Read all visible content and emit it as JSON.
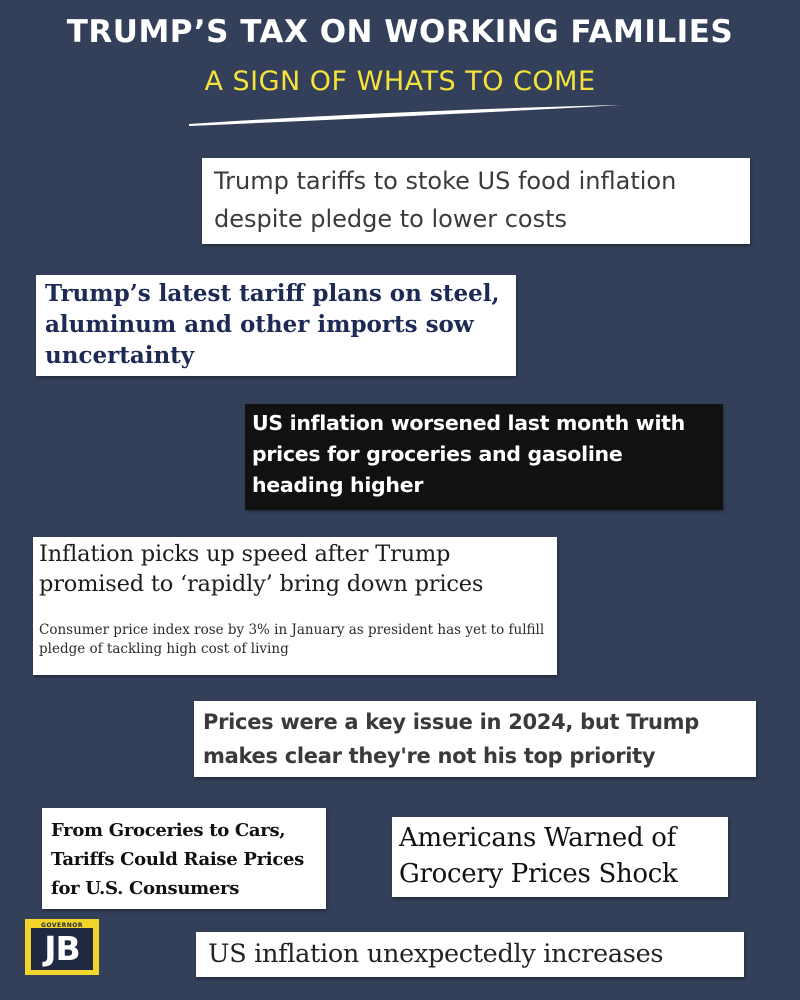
{
  "header": {
    "title": "TRUMP’S TAX ON WORKING FAMILIES",
    "subtitle": "A SIGN OF WHATS TO COME"
  },
  "headlines": [
    {
      "text": "Trump tariffs to stoke US food inflation despite pledge to lower costs"
    },
    {
      "text": "Trump’s latest tariff plans on steel, aluminum and other imports sow uncertainty"
    },
    {
      "text": "US inflation worsened last month with prices for groceries and gasoline heading higher"
    },
    {
      "text": "Inflation picks up speed after Trump promised to ‘rapidly’ bring down prices",
      "subhead": "Consumer price index rose by 3% in January as president has yet to fulfill pledge of tackling high cost of living"
    },
    {
      "text": "Prices were a key issue in 2024, but Trump makes clear they're not his top priority"
    },
    {
      "text": "From Groceries to Cars, Tariffs Could Raise Prices for U.S. Consumers"
    },
    {
      "text": "Americans Warned of Grocery Prices Shock"
    },
    {
      "text": "US inflation unexpectedly increases"
    }
  ],
  "logo": {
    "small_text": "GOVERNOR",
    "initials": "JB",
    "colors": {
      "background": "#f1d52c",
      "box": "#1f2940"
    }
  },
  "colors": {
    "page_background": "#34405a",
    "title": "#ffffff",
    "subtitle": "#f3e33a"
  }
}
